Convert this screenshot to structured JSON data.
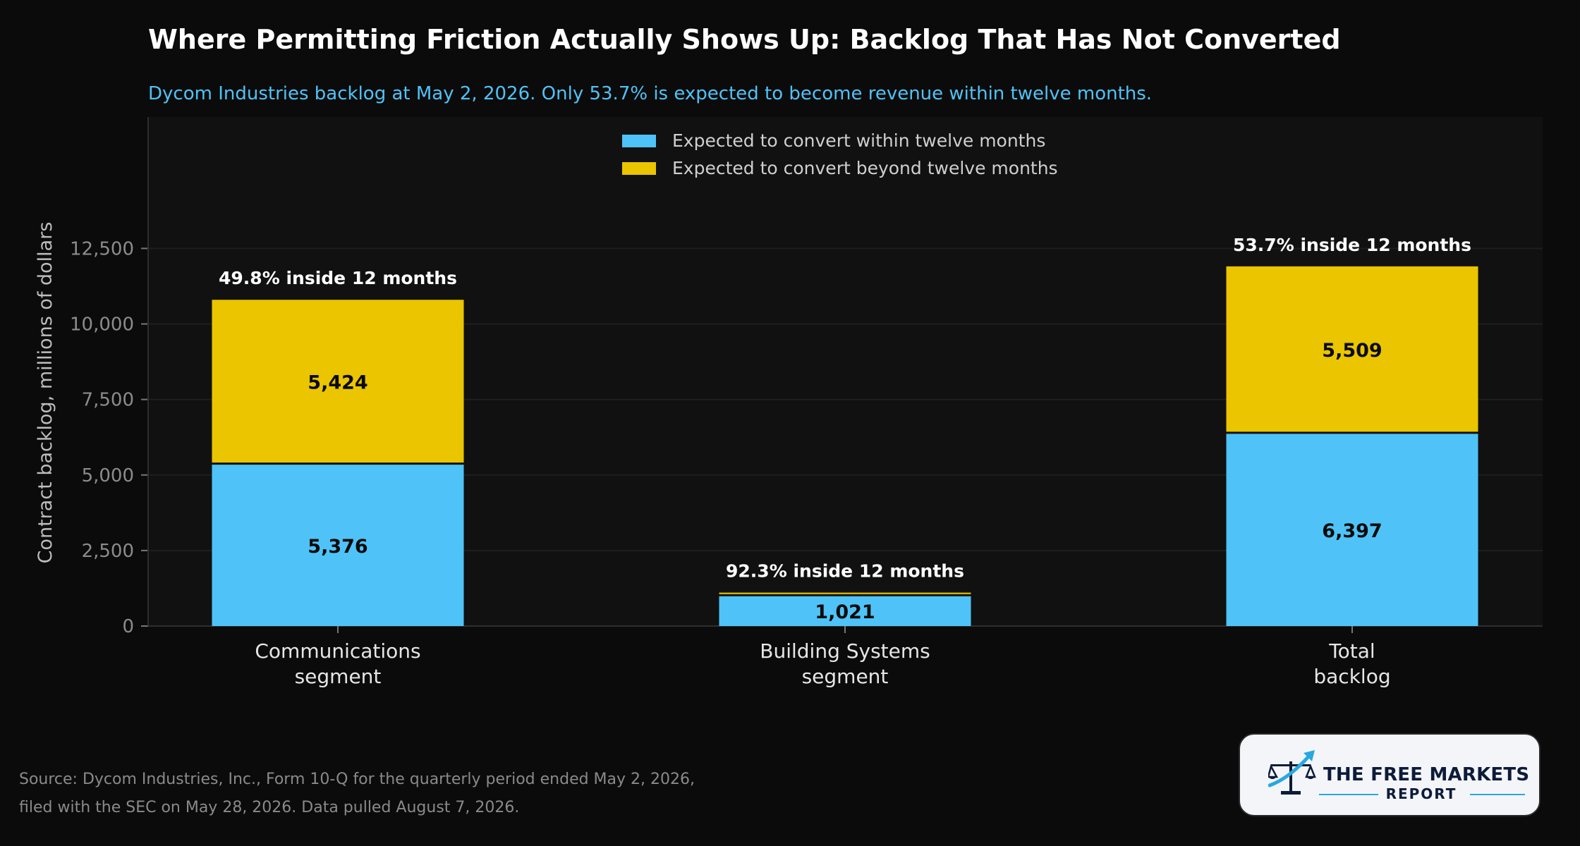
{
  "title": "Where Permitting Friction Actually Shows Up: Backlog That Has Not Converted",
  "subtitle": "Dycom Industries backlog at May 2, 2026. Only 53.7% is expected to become revenue within twelve months.",
  "source": {
    "line1": "Source: Dycom Industries, Inc., Form 10-Q for the quarterly period ended May 2, 2026,",
    "line2": "filed with the SEC on May 28, 2026. Data pulled August 7, 2026."
  },
  "logo": {
    "line1": "THE FREE MARKETS",
    "line2": "REPORT"
  },
  "colors": {
    "within": "#4fc3f7",
    "beyond": "#eac500",
    "background": "#0b0b0b",
    "plot_background": "#111111",
    "accent_text": "#4fc3f7"
  },
  "chart_data": {
    "type": "bar",
    "stacked": true,
    "categories": [
      [
        "Communications",
        "segment"
      ],
      [
        "Building Systems",
        "segment"
      ],
      [
        "Total",
        "backlog"
      ]
    ],
    "series": [
      {
        "name": "Expected to convert within twelve months",
        "values": [
          5376,
          1021,
          6397
        ],
        "labels": [
          "5,376",
          "1,021",
          "6,397"
        ]
      },
      {
        "name": "Expected to convert beyond twelve months",
        "values": [
          5424,
          85,
          5509
        ],
        "labels": [
          "5,424",
          "",
          "5,509"
        ]
      }
    ],
    "annotations": [
      "49.8% inside 12 months",
      "92.3% inside 12 months",
      "53.7% inside 12 months"
    ],
    "ylabel": "Contract backlog, millions of dollars",
    "xlabel": "",
    "yticks": [
      0,
      2500,
      5000,
      7500,
      10000,
      12500
    ],
    "ytick_labels": [
      "0",
      "2,500",
      "5,000",
      "7,500",
      "10,000",
      "12,500"
    ],
    "ylim": [
      0,
      16850
    ],
    "grid": "horizontal",
    "legend": "top-center"
  }
}
